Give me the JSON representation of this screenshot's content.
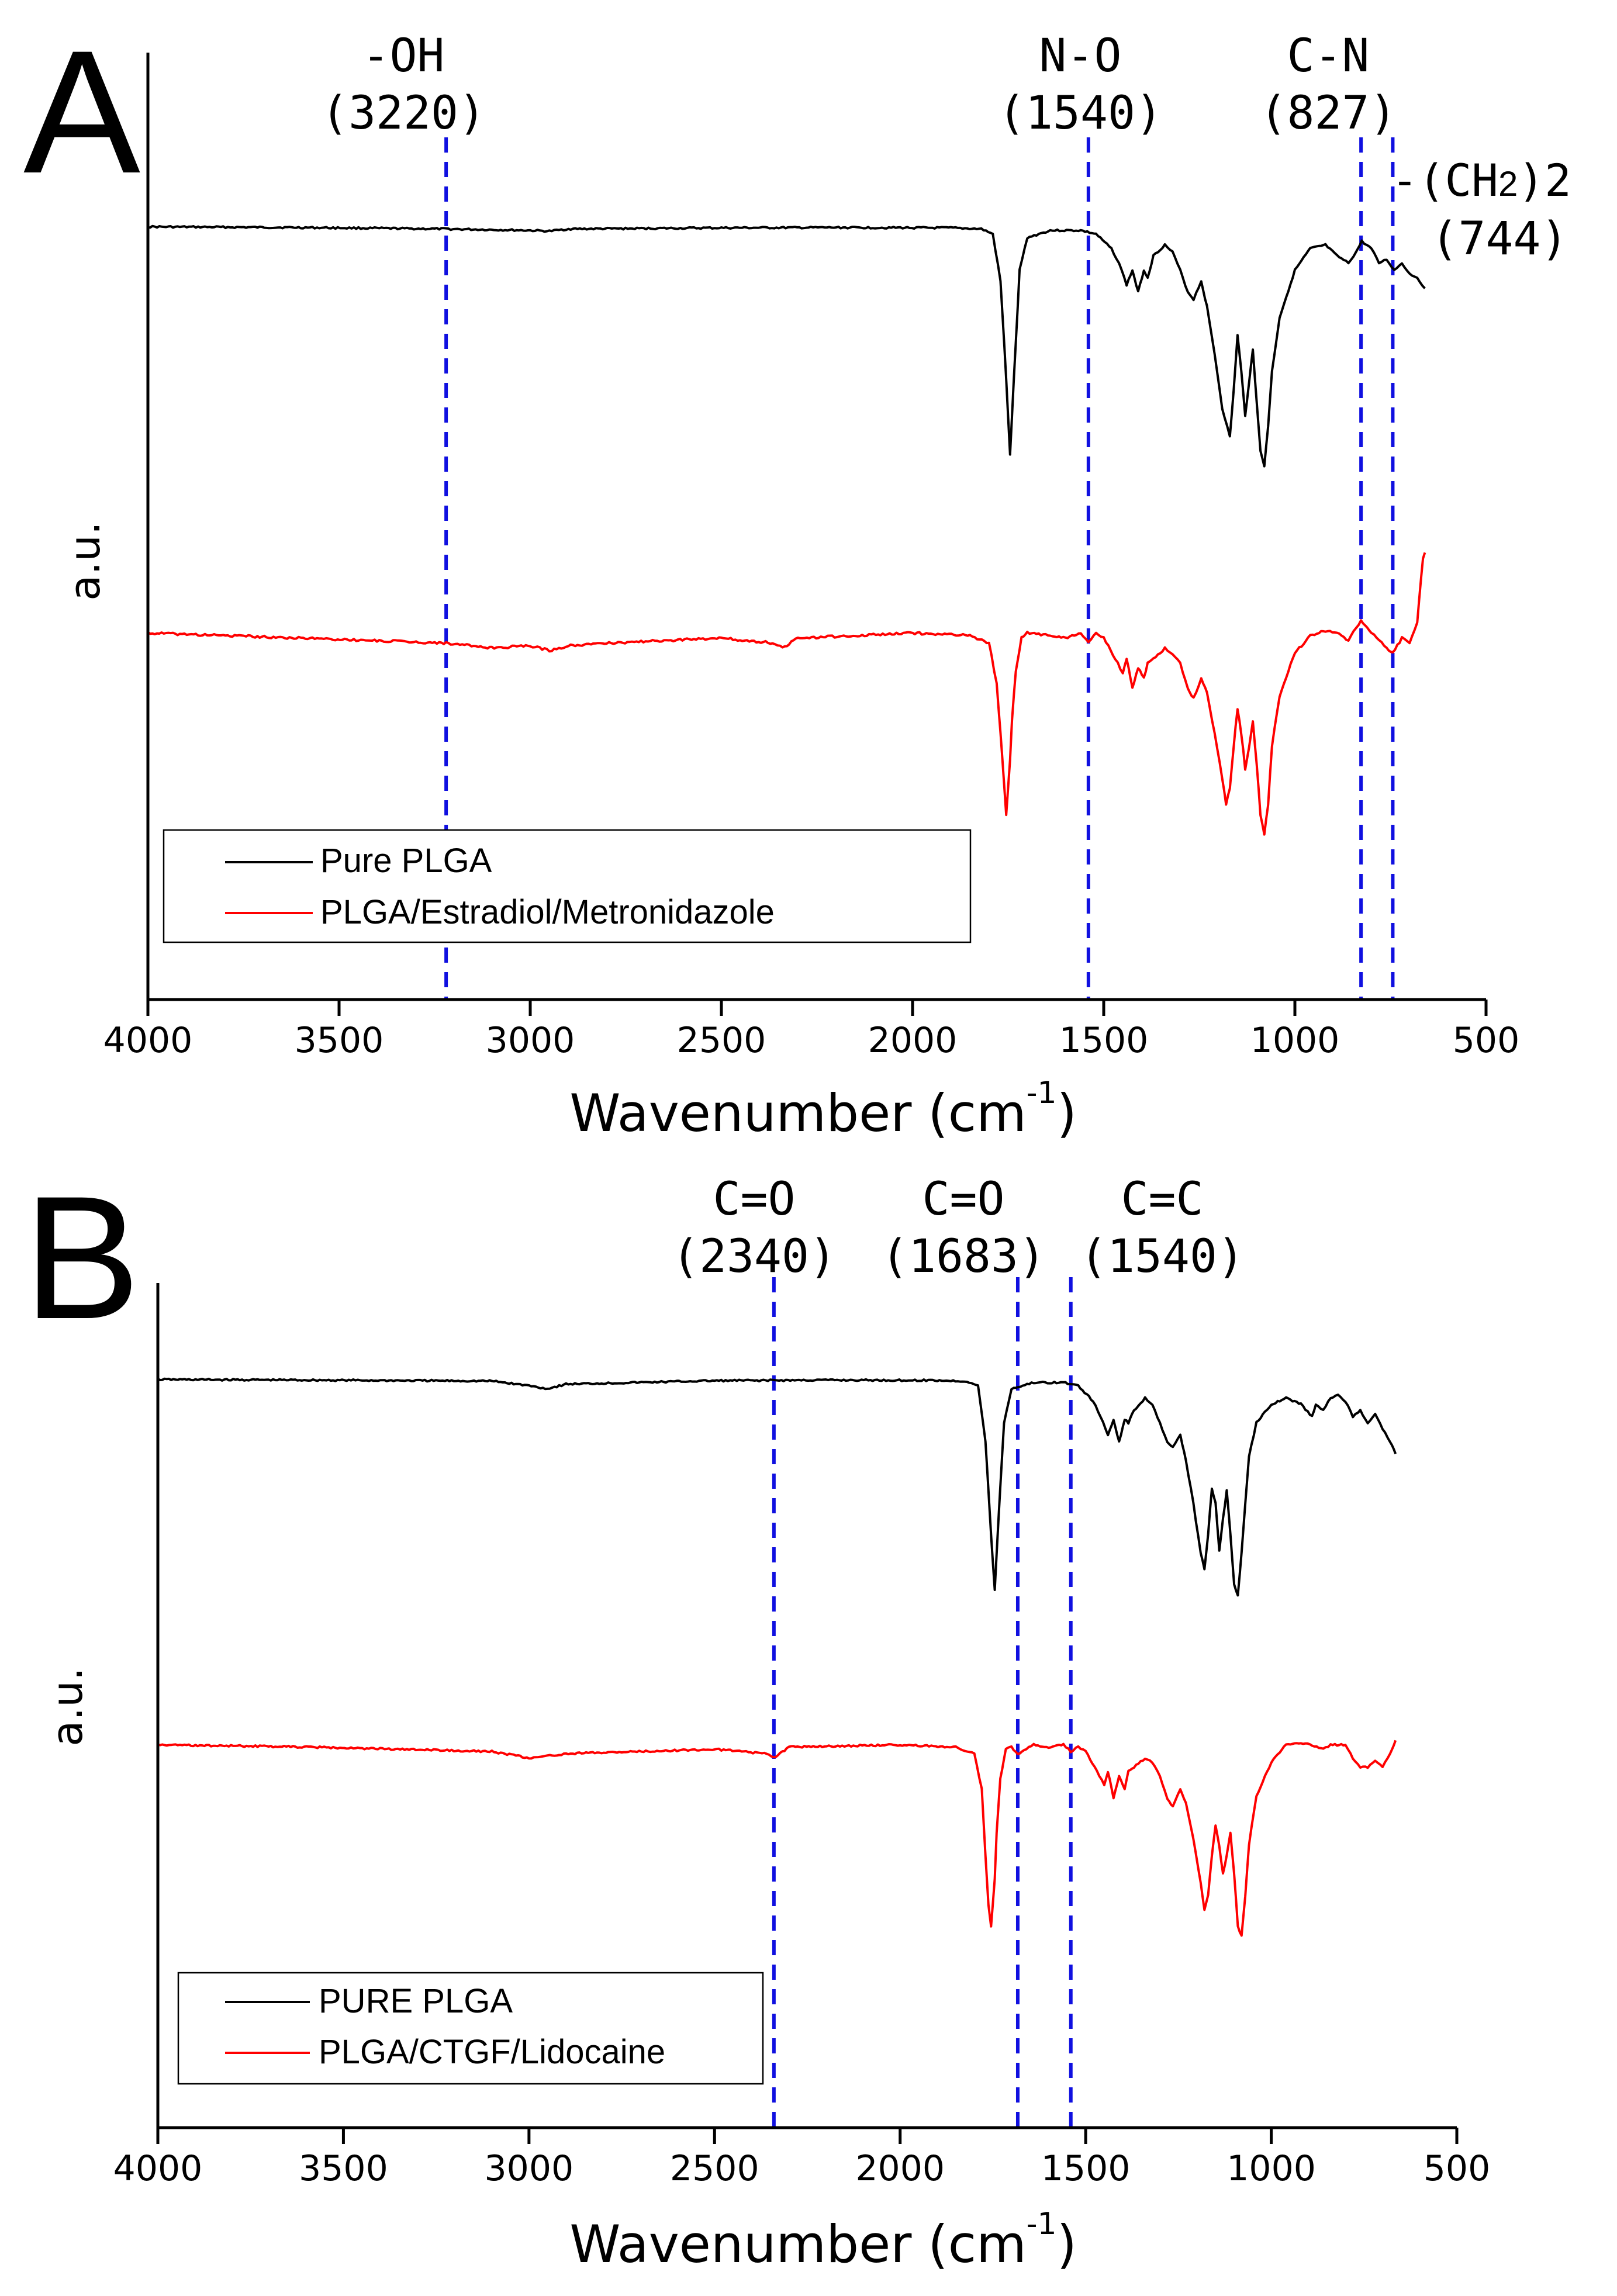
{
  "chart_data": [
    {
      "panel": "A",
      "type": "line",
      "xlabel": "Wavenumber (cm",
      "xlabel_sup": "-1",
      "xlabel_close": ")",
      "ylabel": "a.u.",
      "xlim": [
        4000,
        500
      ],
      "x_inverted": true,
      "xticks": [
        "4000",
        "3500",
        "3000",
        "2500",
        "2000",
        "1500",
        "1000",
        "500"
      ],
      "legend": {
        "position": "lower-left",
        "entries": [
          "Pure PLGA",
          "PLGA/Estradiol/Metronidazole"
        ]
      },
      "series": [
        {
          "name": "Pure PLGA",
          "color": "#000000",
          "baseline": 0.0,
          "x": [
            4000,
            3600,
            3220,
            3000,
            2950,
            2900,
            2500,
            2200,
            1900,
            1820,
            1790,
            1770,
            1755,
            1745,
            1735,
            1720,
            1700,
            1640,
            1560,
            1520,
            1480,
            1460,
            1440,
            1425,
            1410,
            1395,
            1385,
            1370,
            1340,
            1320,
            1300,
            1280,
            1265,
            1245,
            1230,
            1210,
            1190,
            1170,
            1160,
            1150,
            1140,
            1130,
            1120,
            1110,
            1100,
            1090,
            1080,
            1070,
            1060,
            1040,
            1000,
            960,
            920,
            890,
            860,
            840,
            825,
            800,
            780,
            760,
            740,
            720,
            700,
            680,
            660
          ],
          "y": [
            0.0,
            -0.002,
            -0.006,
            -0.01,
            -0.012,
            -0.006,
            -0.003,
            -0.002,
            -0.003,
            -0.006,
            -0.02,
            -0.15,
            -0.42,
            -0.63,
            -0.42,
            -0.12,
            -0.03,
            -0.01,
            -0.01,
            -0.02,
            -0.06,
            -0.1,
            -0.16,
            -0.12,
            -0.18,
            -0.12,
            -0.14,
            -0.08,
            -0.05,
            -0.07,
            -0.12,
            -0.18,
            -0.2,
            -0.15,
            -0.22,
            -0.35,
            -0.5,
            -0.58,
            -0.45,
            -0.3,
            -0.4,
            -0.52,
            -0.43,
            -0.34,
            -0.48,
            -0.62,
            -0.66,
            -0.55,
            -0.4,
            -0.25,
            -0.12,
            -0.06,
            -0.05,
            -0.08,
            -0.1,
            -0.07,
            -0.04,
            -0.06,
            -0.1,
            -0.09,
            -0.12,
            -0.1,
            -0.13,
            -0.14,
            -0.17
          ]
        },
        {
          "name": "PLGA/Estradiol/Metronidazole",
          "color": "#ff0000",
          "baseline": -1.1,
          "x": [
            4000,
            3600,
            3220,
            3100,
            3000,
            2950,
            2900,
            2800,
            2500,
            2360,
            2340,
            2300,
            2000,
            1850,
            1800,
            1780,
            1765,
            1755,
            1745,
            1740,
            1730,
            1715,
            1700,
            1640,
            1600,
            1560,
            1540,
            1520,
            1500,
            1470,
            1450,
            1440,
            1425,
            1410,
            1395,
            1385,
            1370,
            1340,
            1320,
            1300,
            1280,
            1265,
            1245,
            1230,
            1210,
            1190,
            1180,
            1170,
            1160,
            1150,
            1140,
            1130,
            1120,
            1110,
            1100,
            1090,
            1080,
            1070,
            1060,
            1040,
            1000,
            960,
            920,
            890,
            860,
            840,
            827,
            800,
            780,
            760,
            744,
            720,
            700,
            680,
            665,
            660
          ],
          "y": [
            -1.1,
            -1.12,
            -1.14,
            -1.16,
            -1.15,
            -1.17,
            -1.15,
            -1.14,
            -1.12,
            -1.14,
            -1.16,
            -1.12,
            -1.1,
            -1.11,
            -1.14,
            -1.3,
            -1.6,
            -1.82,
            -1.6,
            -1.45,
            -1.25,
            -1.12,
            -1.1,
            -1.11,
            -1.12,
            -1.1,
            -1.14,
            -1.1,
            -1.12,
            -1.2,
            -1.26,
            -1.2,
            -1.32,
            -1.24,
            -1.28,
            -1.22,
            -1.2,
            -1.16,
            -1.18,
            -1.22,
            -1.32,
            -1.36,
            -1.28,
            -1.34,
            -1.5,
            -1.68,
            -1.78,
            -1.72,
            -1.55,
            -1.4,
            -1.5,
            -1.64,
            -1.56,
            -1.45,
            -1.62,
            -1.82,
            -1.9,
            -1.78,
            -1.55,
            -1.35,
            -1.18,
            -1.11,
            -1.09,
            -1.1,
            -1.13,
            -1.08,
            -1.05,
            -1.1,
            -1.13,
            -1.16,
            -1.18,
            -1.12,
            -1.14,
            -1.06,
            -0.8,
            -0.78
          ]
        }
      ],
      "annotations": [
        {
          "wavenumber": 3220,
          "label": "-OH",
          "value_label": "(3220)"
        },
        {
          "wavenumber": 1540,
          "label": "N-O",
          "value_label": "(1540)"
        },
        {
          "wavenumber": 827,
          "label": "C-N",
          "value_label": "(827)"
        },
        {
          "wavenumber": 744,
          "label_prefix": "-(CH",
          "label_sub": "2",
          "label_suffix": ")2",
          "value_label": "(744)"
        }
      ]
    },
    {
      "panel": "B",
      "type": "line",
      "xlabel": "Wavenumber (cm",
      "xlabel_sup": "-1",
      "xlabel_close": ")",
      "ylabel": "a.u.",
      "xlim": [
        4000,
        500
      ],
      "x_inverted": true,
      "xticks": [
        "4000",
        "3500",
        "3000",
        "2500",
        "2000",
        "1500",
        "1000",
        "500"
      ],
      "legend": {
        "position": "lower-left",
        "entries": [
          "PURE PLGA",
          "PLGA/CTGF/Lidocaine"
        ]
      },
      "series": [
        {
          "name": "PURE PLGA",
          "color": "#000000",
          "baseline": 0.0,
          "x": [
            4000,
            3600,
            3100,
            3000,
            2950,
            2900,
            2500,
            2200,
            1900,
            1820,
            1790,
            1770,
            1755,
            1745,
            1735,
            1720,
            1700,
            1640,
            1560,
            1520,
            1480,
            1460,
            1440,
            1425,
            1410,
            1395,
            1385,
            1370,
            1340,
            1320,
            1300,
            1280,
            1265,
            1245,
            1230,
            1210,
            1190,
            1180,
            1170,
            1160,
            1150,
            1140,
            1130,
            1120,
            1110,
            1100,
            1090,
            1080,
            1070,
            1060,
            1040,
            1000,
            960,
            920,
            890,
            880,
            860,
            840,
            820,
            800,
            780,
            760,
            740,
            720,
            700,
            680,
            665
          ],
          "y": [
            0.0,
            -0.002,
            -0.005,
            -0.02,
            -0.03,
            -0.015,
            -0.004,
            -0.002,
            -0.003,
            -0.006,
            -0.02,
            -0.2,
            -0.5,
            -0.68,
            -0.45,
            -0.14,
            -0.03,
            -0.01,
            -0.01,
            -0.02,
            -0.07,
            -0.12,
            -0.18,
            -0.13,
            -0.2,
            -0.13,
            -0.14,
            -0.1,
            -0.06,
            -0.08,
            -0.14,
            -0.2,
            -0.22,
            -0.18,
            -0.26,
            -0.4,
            -0.56,
            -0.61,
            -0.5,
            -0.35,
            -0.4,
            -0.55,
            -0.45,
            -0.36,
            -0.5,
            -0.66,
            -0.7,
            -0.56,
            -0.4,
            -0.25,
            -0.14,
            -0.08,
            -0.06,
            -0.08,
            -0.12,
            -0.08,
            -0.1,
            -0.06,
            -0.05,
            -0.07,
            -0.12,
            -0.1,
            -0.14,
            -0.11,
            -0.16,
            -0.2,
            -0.24
          ]
        },
        {
          "name": "PLGA/CTGF/Lidocaine",
          "color": "#ff0000",
          "baseline": -1.1,
          "x": [
            4000,
            3600,
            3100,
            3000,
            2950,
            2900,
            2500,
            2360,
            2340,
            2300,
            2000,
            1850,
            1800,
            1780,
            1770,
            1762,
            1755,
            1745,
            1740,
            1730,
            1715,
            1700,
            1683,
            1660,
            1640,
            1600,
            1560,
            1540,
            1520,
            1500,
            1470,
            1450,
            1440,
            1425,
            1410,
            1395,
            1385,
            1370,
            1340,
            1320,
            1300,
            1280,
            1265,
            1245,
            1230,
            1210,
            1190,
            1180,
            1170,
            1160,
            1150,
            1140,
            1130,
            1120,
            1110,
            1100,
            1090,
            1080,
            1070,
            1060,
            1040,
            1000,
            960,
            920,
            890,
            860,
            840,
            800,
            780,
            760,
            740,
            720,
            700,
            680,
            665
          ],
          "y": [
            -1.1,
            -1.11,
            -1.13,
            -1.16,
            -1.15,
            -1.14,
            -1.12,
            -1.14,
            -1.16,
            -1.11,
            -1.1,
            -1.11,
            -1.14,
            -1.3,
            -1.6,
            -1.82,
            -1.92,
            -1.7,
            -1.5,
            -1.25,
            -1.12,
            -1.11,
            -1.14,
            -1.12,
            -1.1,
            -1.11,
            -1.1,
            -1.13,
            -1.11,
            -1.13,
            -1.22,
            -1.28,
            -1.22,
            -1.34,
            -1.24,
            -1.3,
            -1.22,
            -1.2,
            -1.16,
            -1.18,
            -1.24,
            -1.34,
            -1.38,
            -1.3,
            -1.36,
            -1.52,
            -1.72,
            -1.84,
            -1.78,
            -1.6,
            -1.46,
            -1.56,
            -1.68,
            -1.6,
            -1.5,
            -1.68,
            -1.92,
            -1.96,
            -1.78,
            -1.55,
            -1.33,
            -1.18,
            -1.1,
            -1.09,
            -1.1,
            -1.12,
            -1.1,
            -1.1,
            -1.16,
            -1.2,
            -1.2,
            -1.17,
            -1.2,
            -1.14,
            -1.08
          ]
        }
      ],
      "annotations": [
        {
          "wavenumber": 2340,
          "label": "C=O",
          "value_label": "(2340)"
        },
        {
          "wavenumber": 1683,
          "label": "C=O",
          "value_label": "(1683)"
        },
        {
          "wavenumber": 1540,
          "label": "C=C",
          "value_label": "(1540)"
        }
      ]
    }
  ]
}
